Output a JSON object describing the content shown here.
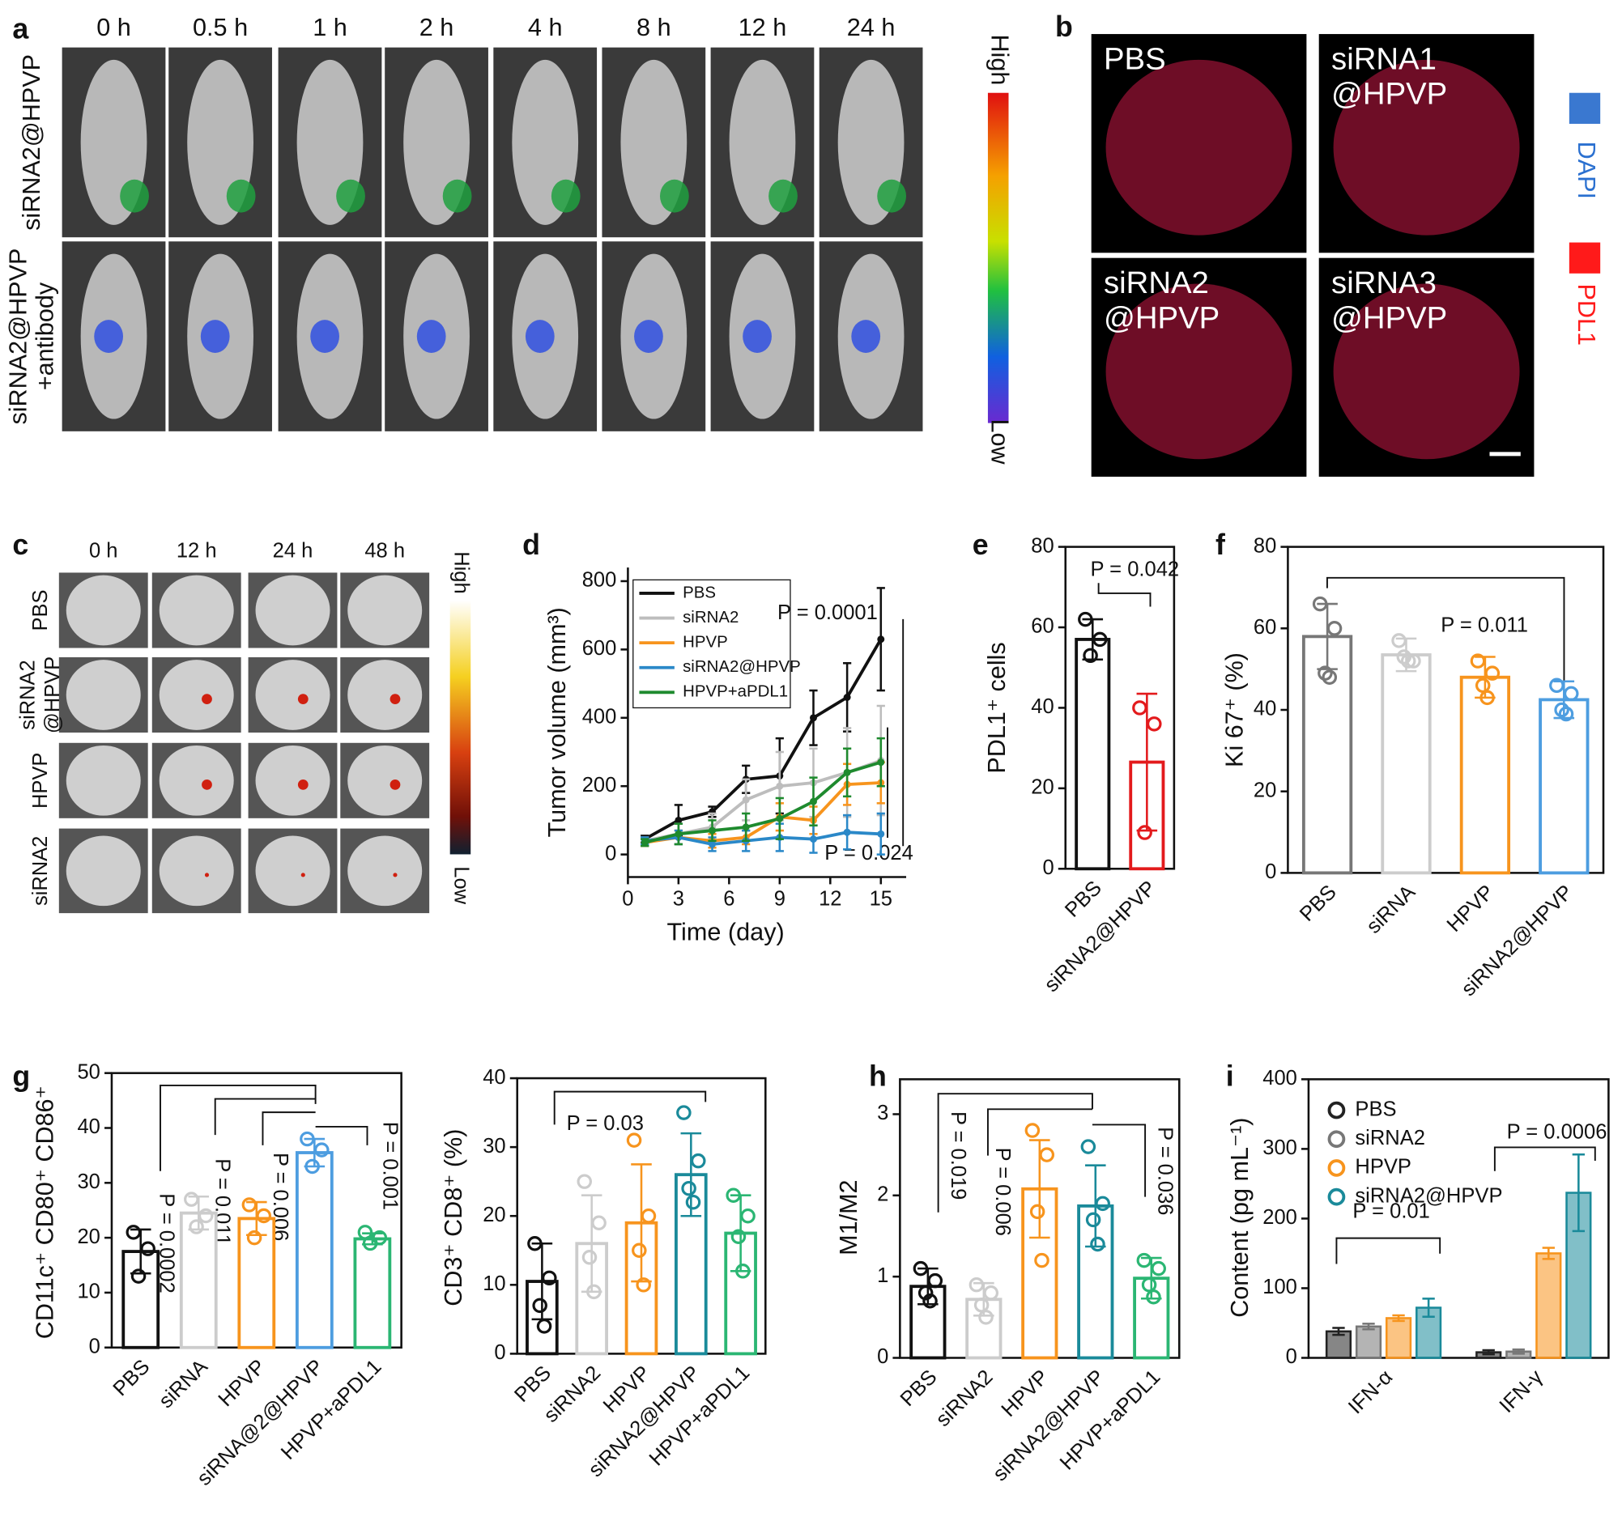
{
  "panel_letters": [
    "a",
    "b",
    "c",
    "d",
    "e",
    "f",
    "g",
    "h",
    "i"
  ],
  "panel_a": {
    "times": [
      "0 h",
      "0.5 h",
      "1 h",
      "2 h",
      "4 h",
      "8 h",
      "12 h",
      "24 h"
    ],
    "rows": [
      [
        "siRNA2@HPVP"
      ],
      [
        "siRNA2@HPVP",
        "+antibody"
      ]
    ],
    "colorbar": [
      "High",
      "Low"
    ]
  },
  "panel_b": {
    "labels": [
      [
        "PBS"
      ],
      [
        "siRNA1",
        "@HPVP"
      ],
      [
        "siRNA2",
        "@HPVP"
      ],
      [
        "siRNA3",
        "@HPVP"
      ]
    ],
    "legend": [
      "DAPI",
      "PDL1"
    ]
  },
  "panel_c": {
    "times": [
      "0 h",
      "12 h",
      "24 h",
      "48 h"
    ],
    "rows": [
      [
        "PBS"
      ],
      [
        "siRNA2",
        "@HPVP"
      ],
      [
        "HPVP"
      ],
      [
        "siRNA2"
      ]
    ],
    "colorbar": [
      "High",
      "Low"
    ]
  },
  "chart_data": [
    {
      "type": "line",
      "xlabel": "Time (day)",
      "ylabel": "Tumor volume (mm³)",
      "x": [
        1,
        3,
        5,
        7,
        9,
        11,
        13,
        15
      ],
      "xlim": [
        0,
        16.5
      ],
      "xticks": [
        0,
        3,
        6,
        9,
        12,
        15
      ],
      "ylim": [
        -66,
        840
      ],
      "yticks": [
        0,
        200,
        400,
        600,
        800
      ],
      "series": [
        {
          "name": "PBS",
          "color": "#111111",
          "values": [
            45,
            100,
            125,
            220,
            230,
            400,
            460,
            630
          ],
          "errors": [
            10,
            45,
            15,
            40,
            110,
            80,
            100,
            150
          ]
        },
        {
          "name": "siRNA2",
          "color": "#bdbdbd",
          "values": [
            40,
            60,
            80,
            160,
            200,
            210,
            240,
            275
          ],
          "errors": [
            10,
            30,
            40,
            60,
            100,
            100,
            130,
            160
          ]
        },
        {
          "name": "HPVP",
          "color": "#f7941d",
          "values": [
            35,
            50,
            40,
            50,
            110,
            100,
            205,
            210
          ],
          "errors": [
            10,
            20,
            20,
            20,
            40,
            40,
            60,
            60
          ]
        },
        {
          "name": "siRNA2@HPVP",
          "color": "#2a88c8",
          "values": [
            40,
            50,
            30,
            40,
            50,
            45,
            65,
            60
          ],
          "errors": [
            10,
            20,
            20,
            30,
            40,
            40,
            50,
            60
          ]
        },
        {
          "name": "HPVP+aPDL1",
          "color": "#1e8a2e",
          "values": [
            35,
            60,
            70,
            80,
            105,
            155,
            240,
            270
          ],
          "errors": [
            10,
            30,
            30,
            40,
            60,
            70,
            70,
            70
          ]
        }
      ],
      "annotations": [
        "P = 0.0001",
        "P = 0.024"
      ]
    },
    {
      "type": "bar",
      "ylabel": "PDL1⁺ cells",
      "categories": [
        "PBS",
        "siRNA2@HPVP"
      ],
      "colors": [
        "#111111",
        "#e31a1c"
      ],
      "values": [
        57,
        26.5
      ],
      "errors": [
        5,
        17
      ],
      "points": [
        [
          62,
          57,
          53
        ],
        [
          40,
          36,
          9
        ]
      ],
      "ylim": [
        0,
        80
      ],
      "yticks": [
        0,
        20,
        40,
        60,
        80
      ],
      "annotations": [
        "P = 0.042"
      ]
    },
    {
      "type": "bar",
      "ylabel": "Ki 67⁺ (%)",
      "categories": [
        "PBS",
        "siRNA",
        "HPVP",
        "siRNA2@HPVP"
      ],
      "colors": [
        "#777777",
        "#cccccc",
        "#f7941d",
        "#4d9de0"
      ],
      "values": [
        58,
        53.5,
        48,
        42.5
      ],
      "errors": [
        8,
        4,
        5,
        4.5
      ],
      "points": [
        [
          66,
          60,
          49,
          48
        ],
        [
          57,
          52,
          53,
          52
        ],
        [
          52,
          49,
          46,
          43
        ],
        [
          46,
          44,
          40,
          39
        ]
      ],
      "ylim": [
        0,
        80
      ],
      "yticks": [
        0,
        20,
        40,
        60,
        80
      ],
      "annotations": [
        "P = 0.011"
      ]
    },
    {
      "type": "bar",
      "ylabel": "CD11c⁺ CD80⁺ CD86⁺",
      "categories": [
        "PBS",
        "siRNA",
        "HPVP",
        "siRNA@2@HPVP",
        "HPVP+aPDL1"
      ],
      "colors": [
        "#111111",
        "#cccccc",
        "#f7941d",
        "#4d9de0",
        "#2bb673"
      ],
      "values": [
        17.5,
        24.5,
        23.5,
        35.5,
        19.8
      ],
      "errors": [
        4,
        3,
        3,
        2.5,
        1
      ],
      "points": [
        [
          21,
          18,
          13
        ],
        [
          27,
          24,
          22
        ],
        [
          26,
          24,
          20
        ],
        [
          38,
          36,
          33
        ],
        [
          21,
          20,
          19
        ]
      ],
      "ylim": [
        0,
        50
      ],
      "yticks": [
        0,
        10,
        20,
        30,
        40,
        50
      ],
      "annotations": [
        "P = 0.0002",
        "P = 0.011",
        "P = 0.006",
        "P = 0.001"
      ]
    },
    {
      "type": "bar",
      "ylabel": "CD3⁺ CD8⁺ (%)",
      "categories": [
        "PBS",
        "siRNA2",
        "HPVP",
        "siRNA2@HPVP",
        "HPVP+aPDL1"
      ],
      "colors": [
        "#111111",
        "#cccccc",
        "#f7941d",
        "#1a8a9a",
        "#2bb673"
      ],
      "values": [
        10.5,
        16,
        19,
        26,
        17.5
      ],
      "errors": [
        5.5,
        7,
        8.5,
        6,
        5.5
      ],
      "points": [
        [
          16,
          11,
          7,
          4
        ],
        [
          25,
          19,
          14,
          9
        ],
        [
          31,
          20,
          15,
          10
        ],
        [
          35,
          28,
          24,
          22
        ],
        [
          23,
          20,
          17,
          12
        ]
      ],
      "ylim": [
        0,
        40
      ],
      "yticks": [
        0,
        10,
        20,
        30,
        40
      ],
      "annotations": [
        "P = 0.03"
      ]
    },
    {
      "type": "bar",
      "ylabel": "M1/M2",
      "categories": [
        "PBS",
        "siRNA2",
        "HPVP",
        "siRNA2@HPVP",
        "HPVP+aPDL1"
      ],
      "colors": [
        "#111111",
        "#cccccc",
        "#f7941d",
        "#1a8a9a",
        "#2bb673"
      ],
      "values": [
        0.88,
        0.72,
        2.08,
        1.87,
        0.98
      ],
      "errors": [
        0.22,
        0.2,
        0.6,
        0.5,
        0.25
      ],
      "points": [
        [
          1.1,
          0.95,
          0.8,
          0.7
        ],
        [
          0.9,
          0.8,
          0.65,
          0.5
        ],
        [
          2.8,
          2.5,
          1.8,
          1.2
        ],
        [
          2.6,
          1.9,
          1.7,
          1.4
        ],
        [
          1.2,
          1.1,
          0.9,
          0.75
        ]
      ],
      "ylim": [
        0,
        3.43
      ],
      "yticks": [
        0,
        1,
        2,
        3
      ],
      "annotations": [
        "P = 0.019",
        "P = 0.006",
        "P = 0.036"
      ]
    },
    {
      "type": "grouped-bar",
      "ylabel": "Content (pg mL⁻¹)",
      "categories": [
        "IFN-α",
        "IFN-γ"
      ],
      "series": [
        {
          "name": "PBS",
          "color": "#222222",
          "values": [
            38,
            8
          ],
          "errors": [
            5,
            3
          ]
        },
        {
          "name": "siRNA2",
          "color": "#777777",
          "values": [
            45,
            9
          ],
          "errors": [
            4,
            3
          ]
        },
        {
          "name": "HPVP",
          "color": "#f7941d",
          "values": [
            57,
            150
          ],
          "errors": [
            4,
            8
          ]
        },
        {
          "name": "siRNA2@HPVP",
          "color": "#1a8a9a",
          "values": [
            72,
            237
          ],
          "errors": [
            13,
            55
          ]
        }
      ],
      "ylim": [
        0,
        400
      ],
      "yticks": [
        0,
        100,
        200,
        300,
        400
      ],
      "annotations": [
        "P = 0.01",
        "P = 0.0006"
      ]
    }
  ]
}
